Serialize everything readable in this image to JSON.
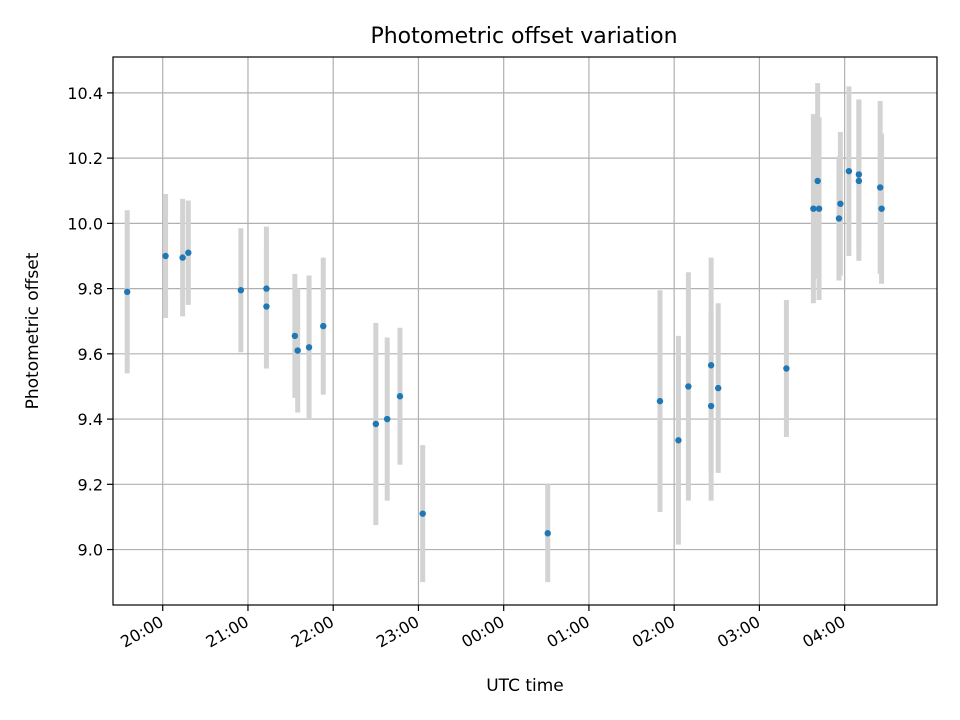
{
  "chart_data": {
    "type": "scatter",
    "title": "Photometric offset variation",
    "xlabel": "UTC time",
    "ylabel": "Photometric offset",
    "x_ticks": [
      "20:00",
      "21:00",
      "22:00",
      "23:00",
      "00:00",
      "01:00",
      "02:00",
      "03:00",
      "04:00"
    ],
    "y_ticks": [
      "9.0",
      "9.2",
      "9.4",
      "9.6",
      "9.8",
      "10.0",
      "10.2",
      "10.4"
    ],
    "xlim": [
      "19:25",
      "29:05"
    ],
    "ylim": [
      8.83,
      10.51
    ],
    "grid": true,
    "colors": {
      "points": "#1f77b4",
      "error_bars": "#d3d3d3",
      "grid": "#b0b0b0"
    },
    "points": [
      {
        "x": "19:35",
        "y": 9.79,
        "err": 0.25
      },
      {
        "x": "20:02",
        "y": 9.9,
        "err": 0.19
      },
      {
        "x": "20:14",
        "y": 9.895,
        "err": 0.18
      },
      {
        "x": "20:18",
        "y": 9.91,
        "err": 0.16
      },
      {
        "x": "20:55",
        "y": 9.795,
        "err": 0.19
      },
      {
        "x": "21:13",
        "y": 9.8,
        "err": 0.19
      },
      {
        "x": "21:13",
        "y": 9.745,
        "err": 0.19
      },
      {
        "x": "21:33",
        "y": 9.655,
        "err": 0.19
      },
      {
        "x": "21:35",
        "y": 9.61,
        "err": 0.19
      },
      {
        "x": "21:43",
        "y": 9.62,
        "err": 0.22
      },
      {
        "x": "21:53",
        "y": 9.685,
        "err": 0.21
      },
      {
        "x": "22:30",
        "y": 9.385,
        "err": 0.31
      },
      {
        "x": "22:38",
        "y": 9.4,
        "err": 0.25
      },
      {
        "x": "22:47",
        "y": 9.47,
        "err": 0.21
      },
      {
        "x": "23:03",
        "y": 9.11,
        "err": 0.21
      },
      {
        "x": "00:31",
        "y": 9.05,
        "err": 0.15
      },
      {
        "x": "01:50",
        "y": 9.455,
        "err": 0.34
      },
      {
        "x": "02:03",
        "y": 9.335,
        "err": 0.32
      },
      {
        "x": "02:10",
        "y": 9.5,
        "err": 0.35
      },
      {
        "x": "02:26",
        "y": 9.44,
        "err": 0.29
      },
      {
        "x": "02:26",
        "y": 9.565,
        "err": 0.33
      },
      {
        "x": "02:31",
        "y": 9.495,
        "err": 0.26
      },
      {
        "x": "03:19",
        "y": 9.555,
        "err": 0.21
      },
      {
        "x": "03:38",
        "y": 10.045,
        "err": 0.29
      },
      {
        "x": "03:41",
        "y": 10.13,
        "err": 0.3
      },
      {
        "x": "03:42",
        "y": 10.045,
        "err": 0.28
      },
      {
        "x": "03:56",
        "y": 10.015,
        "err": 0.19
      },
      {
        "x": "03:57",
        "y": 10.06,
        "err": 0.22
      },
      {
        "x": "04:03",
        "y": 10.16,
        "err": 0.26
      },
      {
        "x": "04:10",
        "y": 10.15,
        "err": 0.23
      },
      {
        "x": "04:10",
        "y": 10.13,
        "err": 0.245
      },
      {
        "x": "04:25",
        "y": 10.11,
        "err": 0.265
      },
      {
        "x": "04:26",
        "y": 10.045,
        "err": 0.23
      }
    ]
  }
}
